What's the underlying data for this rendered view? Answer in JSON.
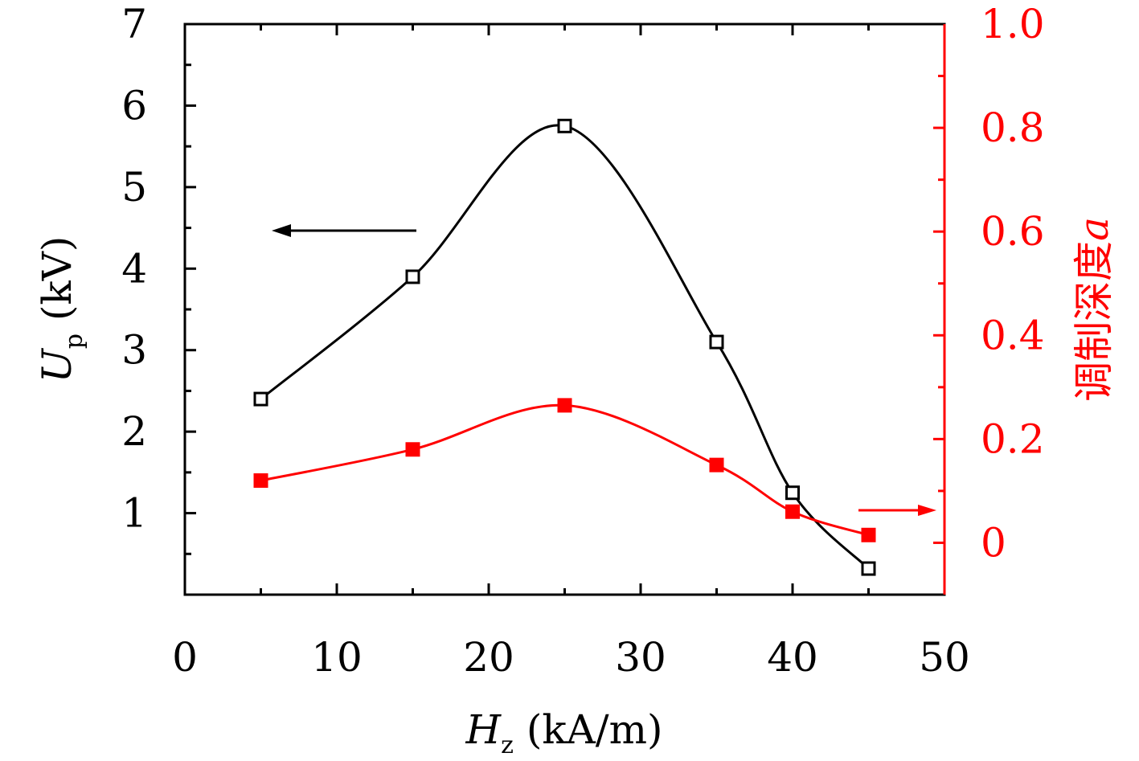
{
  "chart_data": {
    "type": "line",
    "title": "",
    "x": [
      5,
      15,
      25,
      35,
      40,
      45
    ],
    "xlim": [
      0,
      50
    ],
    "x_ticks": [
      0,
      10,
      20,
      30,
      40,
      50
    ],
    "x_tick_labels": [
      "0",
      "10",
      "20",
      "30",
      "40",
      "50"
    ],
    "xlabel": {
      "main": "H",
      "sub": "z",
      "unit": " (kA/m)"
    },
    "y_left": {
      "lim": [
        0,
        7
      ],
      "ticks": [
        1,
        2,
        3,
        4,
        5,
        6,
        7
      ],
      "tick_labels": [
        "1",
        "2",
        "3",
        "4",
        "5",
        "6",
        "7"
      ],
      "label": {
        "main": "U",
        "sub": "p",
        "unit": " (kV)"
      },
      "color": "#000000"
    },
    "y_right": {
      "lim": [
        -0.1,
        1.0
      ],
      "ticks": [
        0,
        0.2,
        0.4,
        0.6,
        0.8,
        1.0
      ],
      "tick_labels": [
        "0",
        "0.2",
        "0.4",
        "0.6",
        "0.8",
        "1.0"
      ],
      "label": {
        "text": "调制深度",
        "var": "a"
      },
      "color": "#ff0000"
    },
    "series": [
      {
        "name": "Up",
        "axis": "left",
        "marker": "open-square",
        "color": "#000000",
        "values": [
          2.4,
          3.9,
          5.75,
          3.1,
          1.25,
          0.32
        ]
      },
      {
        "name": "调制深度 a",
        "axis": "right",
        "marker": "filled-square",
        "color": "#ff0000",
        "values": [
          0.12,
          0.18,
          0.265,
          0.15,
          0.06,
          0.015
        ]
      }
    ],
    "annotations": [
      {
        "type": "arrow",
        "points_to": "left axis",
        "color": "#000000"
      },
      {
        "type": "arrow",
        "points_to": "right axis",
        "color": "#ff0000"
      }
    ]
  }
}
